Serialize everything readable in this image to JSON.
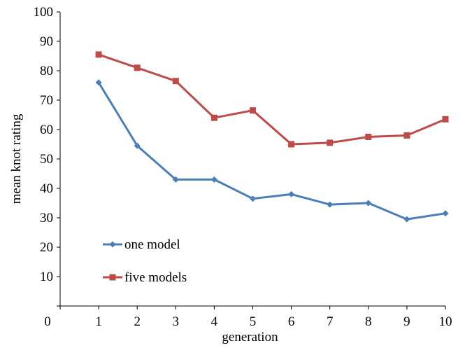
{
  "chart_data": {
    "type": "line",
    "title": "",
    "xlabel": "generation",
    "ylabel": "mean knot rating",
    "x": [
      1,
      2,
      3,
      4,
      5,
      6,
      7,
      8,
      9,
      10
    ],
    "x_ticks": [
      "0",
      "1",
      "2",
      "3",
      "4",
      "5",
      "6",
      "7",
      "8",
      "9",
      "10"
    ],
    "y_ticks": [
      "0",
      "10",
      "20",
      "30",
      "40",
      "50",
      "60",
      "70",
      "80",
      "90",
      "100"
    ],
    "xlim": [
      0,
      10
    ],
    "ylim": [
      0,
      100
    ],
    "grid": false,
    "legend_position": "bottom-left",
    "series": [
      {
        "name": "one model",
        "color": "#4a7ebb",
        "marker": "diamond",
        "values": [
          76,
          54.5,
          43,
          43,
          36.5,
          38,
          34.5,
          35,
          29.5,
          31.5
        ]
      },
      {
        "name": "five models",
        "color": "#be4b48",
        "marker": "square",
        "values": [
          85.5,
          81,
          76.5,
          64,
          66.5,
          55,
          55.5,
          57.5,
          58,
          63.5
        ]
      }
    ]
  }
}
